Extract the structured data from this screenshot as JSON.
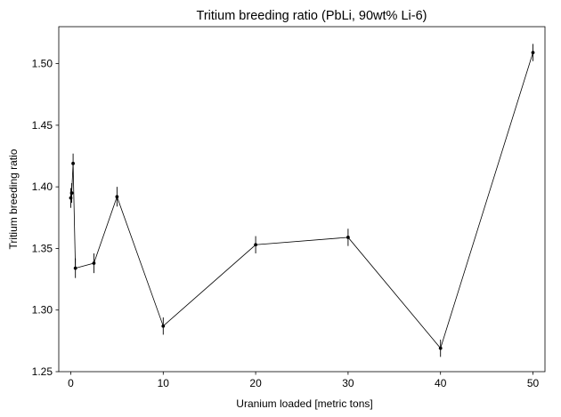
{
  "chart_data": {
    "type": "line",
    "title": "Tritium breeding ratio (PbLi, 90wt% Li-6)",
    "xlabel": "Uranium loaded [metric tons]",
    "ylabel": "Tritium breeding ratio",
    "xlim": [
      -1.3,
      51.3
    ],
    "ylim": [
      1.25,
      1.53
    ],
    "x_ticks": [
      0,
      10,
      20,
      30,
      40,
      50
    ],
    "x_tick_labels": [
      "0",
      "10",
      "20",
      "30",
      "40",
      "50"
    ],
    "y_ticks": [
      1.25,
      1.3,
      1.35,
      1.4,
      1.45,
      1.5
    ],
    "y_tick_labels": [
      "1.25",
      "1.30",
      "1.35",
      "1.40",
      "1.45",
      "1.50"
    ],
    "grid": false,
    "series": [
      {
        "x": [
          0,
          0.1,
          0.25,
          0.5,
          2.5,
          5,
          10,
          20,
          30,
          40,
          50
        ],
        "y": [
          1.391,
          1.395,
          1.419,
          1.334,
          1.338,
          1.392,
          1.287,
          1.353,
          1.359,
          1.269,
          1.509
        ],
        "yerr": [
          0.008,
          0.008,
          0.008,
          0.008,
          0.008,
          0.008,
          0.007,
          0.007,
          0.007,
          0.007,
          0.007
        ],
        "color": "#000000"
      }
    ]
  }
}
